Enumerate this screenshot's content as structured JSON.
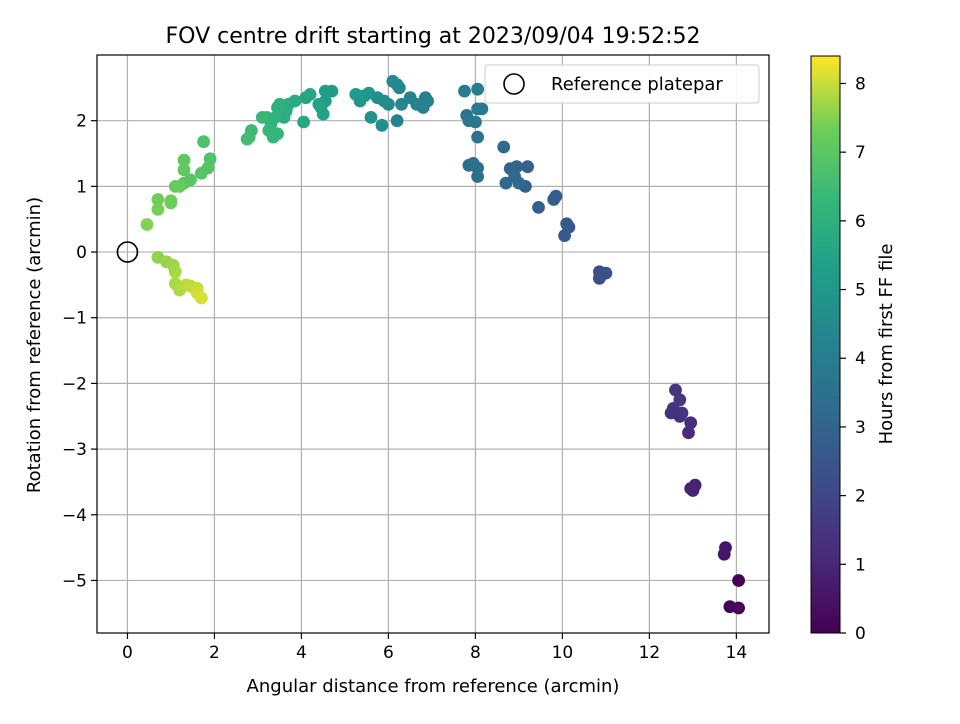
{
  "chart_data": {
    "type": "scatter",
    "title": "FOV centre drift starting at 2023/09/04 19:52:52",
    "xlabel": "Angular distance from reference (arcmin)",
    "ylabel": "Rotation from reference (arcmin)",
    "xlim": [
      -0.7,
      14.75
    ],
    "ylim": [
      -5.8,
      3.0
    ],
    "xticks": [
      0,
      2,
      4,
      6,
      8,
      10,
      12,
      14
    ],
    "xtick_labels": [
      "0",
      "2",
      "4",
      "6",
      "8",
      "10",
      "12",
      "14"
    ],
    "yticks": [
      -5,
      -4,
      -3,
      -2,
      -1,
      0,
      1,
      2
    ],
    "ytick_labels": [
      "−5",
      "−4",
      "−3",
      "−2",
      "−1",
      "0",
      "1",
      "2"
    ],
    "grid": true,
    "legend": {
      "label": "Reference platepar",
      "placement": "upper-right"
    },
    "reference_point": {
      "x": 0,
      "y": 0
    },
    "colorbar": {
      "label": "Hours from first FF file",
      "min": 0,
      "max": 8.4,
      "ticks": [
        0,
        1,
        2,
        3,
        4,
        5,
        6,
        7,
        8
      ],
      "tick_labels": [
        "0",
        "1",
        "2",
        "3",
        "4",
        "5",
        "6",
        "7",
        "8"
      ],
      "colormap": "viridis"
    },
    "points": [
      [
        14.05,
        -5.0,
        0.05
      ],
      [
        13.85,
        -5.4,
        0.1
      ],
      [
        14.05,
        -5.42,
        0.15
      ],
      [
        13.75,
        -4.5,
        0.5
      ],
      [
        13.72,
        -4.6,
        0.55
      ],
      [
        12.95,
        -3.6,
        0.85
      ],
      [
        13.05,
        -3.55,
        0.9
      ],
      [
        13.0,
        -3.63,
        0.95
      ],
      [
        12.9,
        -2.75,
        1.2
      ],
      [
        12.95,
        -2.6,
        1.25
      ],
      [
        12.7,
        -2.5,
        1.3
      ],
      [
        12.5,
        -2.45,
        1.35
      ],
      [
        12.55,
        -2.38,
        1.4
      ],
      [
        12.75,
        -2.45,
        1.45
      ],
      [
        12.6,
        -2.1,
        1.5
      ],
      [
        12.7,
        -2.25,
        1.55
      ],
      [
        10.85,
        -0.4,
        2.2
      ],
      [
        10.85,
        -0.3,
        2.25
      ],
      [
        11.0,
        -0.32,
        2.3
      ],
      [
        10.9,
        -0.35,
        2.35
      ],
      [
        10.05,
        0.25,
        2.55
      ],
      [
        10.15,
        0.38,
        2.6
      ],
      [
        10.1,
        0.43,
        2.65
      ],
      [
        9.85,
        0.85,
        2.75
      ],
      [
        9.8,
        0.8,
        2.8
      ],
      [
        9.45,
        0.68,
        2.85
      ],
      [
        9.15,
        1.0,
        2.9
      ],
      [
        9.2,
        1.3,
        2.95
      ],
      [
        8.95,
        1.3,
        3.0
      ],
      [
        8.8,
        1.27,
        3.05
      ],
      [
        8.9,
        1.15,
        3.1
      ],
      [
        9.0,
        1.05,
        3.15
      ],
      [
        8.7,
        1.05,
        3.2
      ],
      [
        8.65,
        1.6,
        3.25
      ],
      [
        8.05,
        1.15,
        3.35
      ],
      [
        8.05,
        1.28,
        3.4
      ],
      [
        7.85,
        1.32,
        3.45
      ],
      [
        7.95,
        1.35,
        3.5
      ],
      [
        8.05,
        1.75,
        3.55
      ],
      [
        7.8,
        2.08,
        3.65
      ],
      [
        7.85,
        2.0,
        3.7
      ],
      [
        8.0,
        1.98,
        3.75
      ],
      [
        8.05,
        2.18,
        3.8
      ],
      [
        8.15,
        2.18,
        3.85
      ],
      [
        7.75,
        2.45,
        3.9
      ],
      [
        8.05,
        2.48,
        3.95
      ],
      [
        6.85,
        2.35,
        4.05
      ],
      [
        6.9,
        2.3,
        4.1
      ],
      [
        6.8,
        2.2,
        4.15
      ],
      [
        6.65,
        2.25,
        4.2
      ],
      [
        6.5,
        2.35,
        4.25
      ],
      [
        6.2,
        2.0,
        4.3
      ],
      [
        6.3,
        2.25,
        4.35
      ],
      [
        6.25,
        2.5,
        4.4
      ],
      [
        6.2,
        2.55,
        4.45
      ],
      [
        6.1,
        2.6,
        4.5
      ],
      [
        6.0,
        2.25,
        4.55
      ],
      [
        5.9,
        2.3,
        4.6
      ],
      [
        5.85,
        1.93,
        4.65
      ],
      [
        5.75,
        2.35,
        4.7
      ],
      [
        5.6,
        2.05,
        4.8
      ],
      [
        5.45,
        2.38,
        4.9
      ],
      [
        5.55,
        2.42,
        4.95
      ],
      [
        5.35,
        2.3,
        5.0
      ],
      [
        5.3,
        2.38,
        5.05
      ],
      [
        5.25,
        2.4,
        5.1
      ],
      [
        4.7,
        2.45,
        5.2
      ],
      [
        4.55,
        2.45,
        5.25
      ],
      [
        4.55,
        2.3,
        5.3
      ],
      [
        4.45,
        2.2,
        5.35
      ],
      [
        4.5,
        2.1,
        5.4
      ],
      [
        4.4,
        2.25,
        5.45
      ],
      [
        4.1,
        2.35,
        5.55
      ],
      [
        4.2,
        2.4,
        5.6
      ],
      [
        4.05,
        1.98,
        5.65
      ],
      [
        3.85,
        2.3,
        5.75
      ],
      [
        3.7,
        2.25,
        5.8
      ],
      [
        3.65,
        2.15,
        5.85
      ],
      [
        3.6,
        2.05,
        5.9
      ],
      [
        3.5,
        2.25,
        5.95
      ],
      [
        3.45,
        2.2,
        6.0
      ],
      [
        3.4,
        2.05,
        6.05
      ],
      [
        3.3,
        1.95,
        6.1
      ],
      [
        3.2,
        2.05,
        6.15
      ],
      [
        3.35,
        1.75,
        6.2
      ],
      [
        3.45,
        1.8,
        6.25
      ],
      [
        3.25,
        1.85,
        6.3
      ],
      [
        3.1,
        2.05,
        6.35
      ],
      [
        2.85,
        1.85,
        6.45
      ],
      [
        2.8,
        1.75,
        6.5
      ],
      [
        2.75,
        1.72,
        6.55
      ],
      [
        1.75,
        1.68,
        6.75
      ],
      [
        1.9,
        1.42,
        6.8
      ],
      [
        1.85,
        1.28,
        6.85
      ],
      [
        1.7,
        1.2,
        6.9
      ],
      [
        1.45,
        1.1,
        6.95
      ],
      [
        1.3,
        1.05,
        7.0
      ],
      [
        1.3,
        1.4,
        7.05
      ],
      [
        1.3,
        1.25,
        7.1
      ],
      [
        1.2,
        1.0,
        7.15
      ],
      [
        1.1,
        1.0,
        7.2
      ],
      [
        1.0,
        0.78,
        7.25
      ],
      [
        1.0,
        0.75,
        7.3
      ],
      [
        0.7,
        0.8,
        7.35
      ],
      [
        0.7,
        0.65,
        7.4
      ],
      [
        0.45,
        0.42,
        7.5
      ],
      [
        0.7,
        -0.08,
        7.6
      ],
      [
        0.9,
        -0.15,
        7.65
      ],
      [
        1.05,
        -0.2,
        7.7
      ],
      [
        1.1,
        -0.3,
        7.75
      ],
      [
        1.1,
        -0.48,
        7.8
      ],
      [
        1.2,
        -0.58,
        7.85
      ],
      [
        1.35,
        -0.5,
        7.9
      ],
      [
        1.45,
        -0.52,
        7.95
      ],
      [
        1.6,
        -0.55,
        8.0
      ],
      [
        1.6,
        -0.62,
        8.05
      ],
      [
        1.7,
        -0.7,
        8.1
      ]
    ]
  }
}
